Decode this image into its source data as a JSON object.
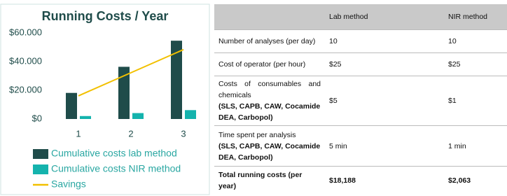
{
  "chart_data": {
    "type": "bar",
    "title": "Running Costs / Year",
    "categories": [
      "1",
      "2",
      "3"
    ],
    "ylim": [
      0,
      60000
    ],
    "yticks": [
      {
        "value": 0,
        "label": "$0"
      },
      {
        "value": 20000,
        "label": "$20.000"
      },
      {
        "value": 40000,
        "label": "$40.000"
      },
      {
        "value": 60000,
        "label": "$60.000"
      }
    ],
    "grid": false,
    "series": [
      {
        "name": "Cumulative costs lab method",
        "color": "#1f4c4a",
        "kind": "bar",
        "values": [
          18188,
          36376,
          54564
        ]
      },
      {
        "name": "Cumulative costs NIR method",
        "color": "#14b3ad",
        "kind": "bar",
        "values": [
          2063,
          4126,
          6189
        ]
      },
      {
        "name": "Savings",
        "color": "#f2c000",
        "kind": "line",
        "values": [
          16125,
          32250,
          48375
        ]
      }
    ]
  },
  "table": {
    "columns": [
      "Lab method",
      "NIR method"
    ],
    "rows": [
      {
        "label": "Number of analyses (per day)",
        "lab": "10",
        "nir": "10"
      },
      {
        "label": "Cost of operator (per hour)",
        "lab": "$25",
        "nir": "$25"
      },
      {
        "label": "Costs of consumables and chemicals",
        "note": "(SLS, CAPB, CAW, Cocamide DEA, Carbopol)",
        "lab": "$5",
        "nir": "$1"
      },
      {
        "label": "Time spent per analysis",
        "note": "(SLS, CAPB, CAW, Cocamide DEA, Carbopol)",
        "lab": "5 min",
        "nir": "1 min"
      },
      {
        "label": "Total running costs (per year)",
        "lab": "$18,188",
        "nir": "$2,063"
      }
    ]
  }
}
